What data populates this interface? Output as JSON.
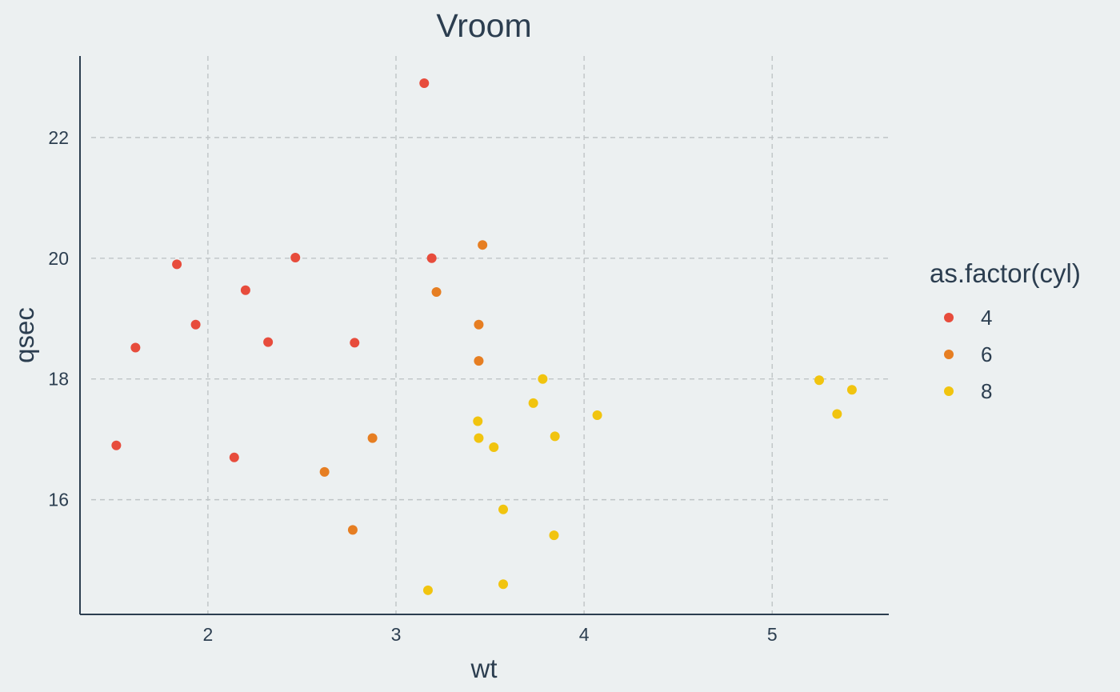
{
  "chart_data": {
    "type": "scatter",
    "title": "Vroom",
    "xlabel": "wt",
    "ylabel": "qsec",
    "xlim": [
      1.32,
      5.62
    ],
    "ylim": [
      14.1,
      23.35
    ],
    "x_ticks": [
      2,
      3,
      4,
      5
    ],
    "y_ticks": [
      16,
      18,
      20,
      22
    ],
    "grid": true,
    "legend": {
      "title": "as.factor(cyl)",
      "placement": "right"
    },
    "series": [
      {
        "name": "4",
        "color": "#e74c3c",
        "points": [
          {
            "x": 2.32,
            "y": 18.61
          },
          {
            "x": 3.19,
            "y": 20.0
          },
          {
            "x": 3.15,
            "y": 22.9
          },
          {
            "x": 2.2,
            "y": 19.47
          },
          {
            "x": 1.615,
            "y": 18.52
          },
          {
            "x": 1.835,
            "y": 19.9
          },
          {
            "x": 2.465,
            "y": 20.01
          },
          {
            "x": 1.935,
            "y": 18.9
          },
          {
            "x": 2.14,
            "y": 16.7
          },
          {
            "x": 1.513,
            "y": 16.9
          },
          {
            "x": 2.78,
            "y": 18.6
          }
        ]
      },
      {
        "name": "6",
        "color": "#e67e22",
        "points": [
          {
            "x": 2.62,
            "y": 16.46
          },
          {
            "x": 2.875,
            "y": 17.02
          },
          {
            "x": 3.215,
            "y": 19.44
          },
          {
            "x": 3.46,
            "y": 20.22
          },
          {
            "x": 3.44,
            "y": 18.3
          },
          {
            "x": 3.44,
            "y": 18.9
          },
          {
            "x": 2.77,
            "y": 15.5
          }
        ]
      },
      {
        "name": "8",
        "color": "#f1c40f",
        "points": [
          {
            "x": 3.44,
            "y": 17.02
          },
          {
            "x": 3.57,
            "y": 15.84
          },
          {
            "x": 4.07,
            "y": 17.4
          },
          {
            "x": 3.73,
            "y": 17.6
          },
          {
            "x": 3.78,
            "y": 18.0
          },
          {
            "x": 5.25,
            "y": 17.98
          },
          {
            "x": 5.424,
            "y": 17.82
          },
          {
            "x": 5.345,
            "y": 17.42
          },
          {
            "x": 3.52,
            "y": 16.87
          },
          {
            "x": 3.435,
            "y": 17.3
          },
          {
            "x": 3.84,
            "y": 15.41
          },
          {
            "x": 3.845,
            "y": 17.05
          },
          {
            "x": 3.17,
            "y": 14.5
          },
          {
            "x": 3.57,
            "y": 14.6
          }
        ]
      }
    ]
  }
}
